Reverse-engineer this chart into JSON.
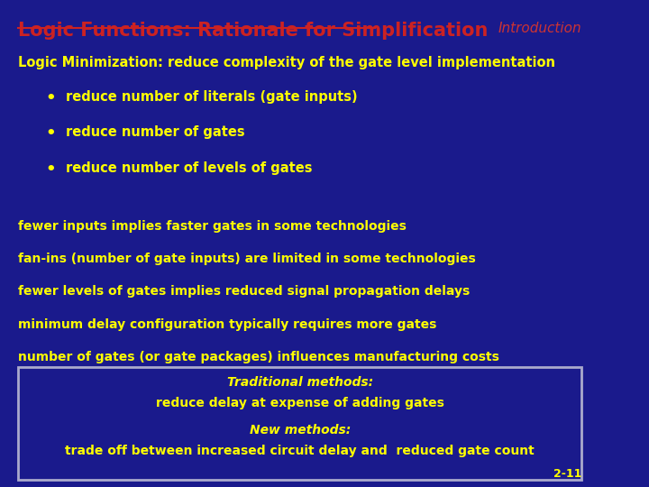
{
  "bg_color": "#1a1a8c",
  "title": "Logic Functions: Rationale for Simplification",
  "title_color": "#cc2222",
  "intro_label": "Introduction",
  "intro_color": "#cc3333",
  "title_fontsize": 15,
  "intro_fontsize": 11,
  "yellow": "#ffff00",
  "slide_number": "2-11",
  "main_line": "Logic Minimization: reduce complexity of the gate level implementation",
  "bullets": [
    "reduce number of literals (gate inputs)",
    "reduce number of gates",
    "reduce number of levels of gates"
  ],
  "extra_lines": [
    "fewer inputs implies faster gates in some technologies",
    "fan-ins (number of gate inputs) are limited in some technologies",
    "fewer levels of gates implies reduced signal propagation delays",
    "minimum delay configuration typically requires more gates",
    "number of gates (or gate packages) influences manufacturing costs"
  ],
  "box_line1_italic": "Traditional methods:",
  "box_line2": "reduce delay at expense of adding gates",
  "box_line3_italic": "New methods:",
  "box_line4": "trade off between increased circuit delay and  reduced gate count",
  "box_border_color": "#aaaacc",
  "box_bg_color": "#1a1a8c"
}
